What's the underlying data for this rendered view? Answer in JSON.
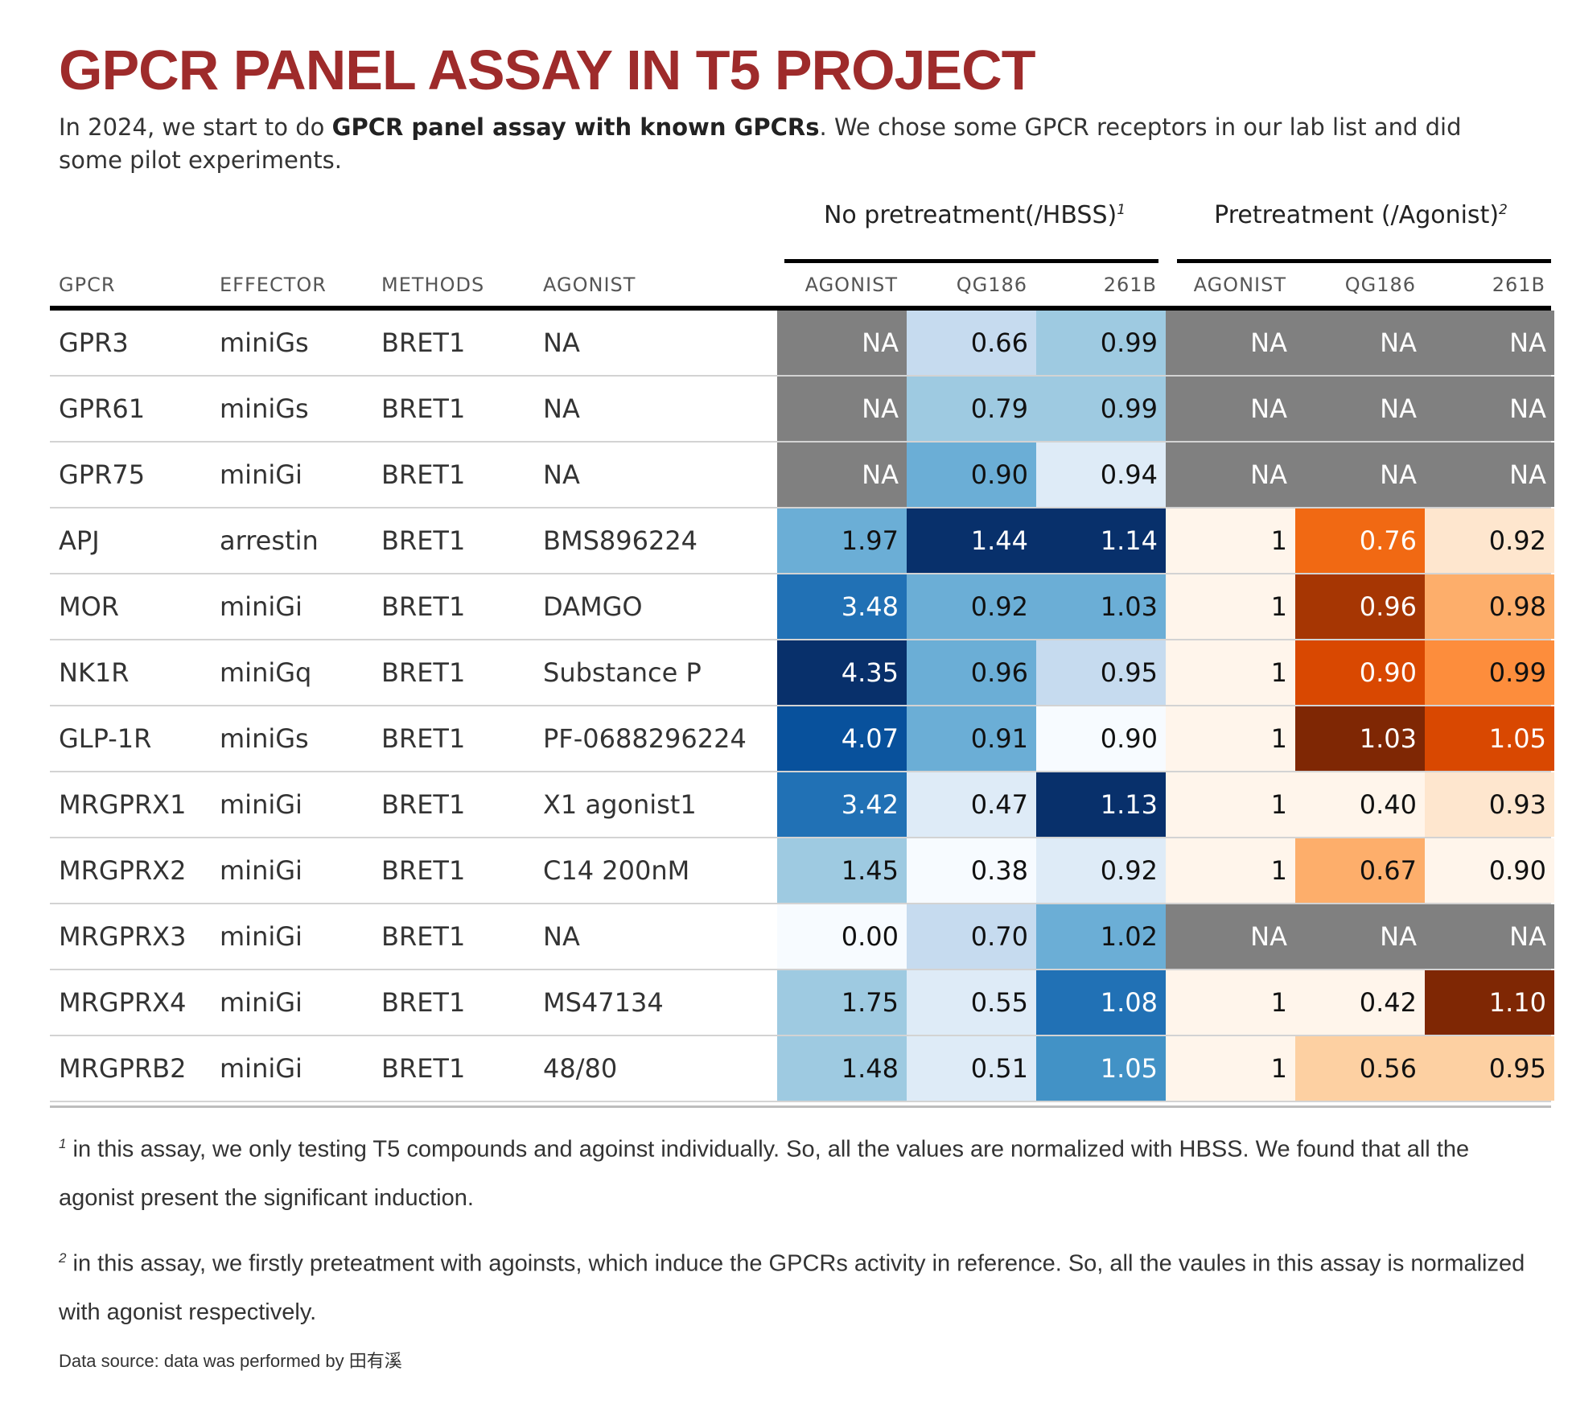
{
  "title": "GPCR PANEL ASSAY IN T5 PROJECT",
  "subtitle": {
    "pre": "In 2024, we start to do ",
    "bold": "GPCR panel assay with known GPCRs",
    "post": ". We chose some GPCR receptors in our lab list and did some pilot experiments."
  },
  "spanners": [
    {
      "label": "No pretreatment(/HBSS)",
      "note": "1"
    },
    {
      "label": "Pretreatment (/Agonist)",
      "note": "2"
    }
  ],
  "columns": [
    "GPCR",
    "EFFECTOR",
    "METHODS",
    "AGONIST",
    "AGONIST",
    "QG186",
    "261B",
    "AGONIST",
    "QG186",
    "261B"
  ],
  "colors": {
    "title": "#9e2b2b",
    "na": "#808080",
    "blues": [
      "#f7fbff",
      "#deebf7",
      "#c6dbef",
      "#9ecae1",
      "#6baed6",
      "#4292c6",
      "#2171b5",
      "#08519c",
      "#08306b"
    ],
    "oranges": [
      "#fff5eb",
      "#fee6ce",
      "#fdd0a2",
      "#fdae6b",
      "#fd8d3c",
      "#f16913",
      "#d94801",
      "#a63603",
      "#7f2704"
    ]
  },
  "chart_data": {
    "type": "table",
    "title": "GPCR PANEL ASSAY IN T5 PROJECT",
    "groups": [
      "No pretreatment(/HBSS)",
      "Pretreatment (/Agonist)"
    ],
    "rows": [
      {
        "gpcr": "GPR3",
        "effector": "miniGs",
        "method": "BRET1",
        "agonist": "NA",
        "nopre": [
          "NA",
          "0.66",
          "0.99"
        ],
        "pre": [
          "NA",
          "NA",
          "NA"
        ]
      },
      {
        "gpcr": "GPR61",
        "effector": "miniGs",
        "method": "BRET1",
        "agonist": "NA",
        "nopre": [
          "NA",
          "0.79",
          "0.99"
        ],
        "pre": [
          "NA",
          "NA",
          "NA"
        ]
      },
      {
        "gpcr": "GPR75",
        "effector": "miniGi",
        "method": "BRET1",
        "agonist": "NA",
        "nopre": [
          "NA",
          "0.90",
          "0.94"
        ],
        "pre": [
          "NA",
          "NA",
          "NA"
        ]
      },
      {
        "gpcr": "APJ",
        "effector": "arrestin",
        "method": "BRET1",
        "agonist": "BMS896224",
        "nopre": [
          "1.97",
          "1.44",
          "1.14"
        ],
        "pre": [
          "1",
          "0.76",
          "0.92"
        ]
      },
      {
        "gpcr": "MOR",
        "effector": "miniGi",
        "method": "BRET1",
        "agonist": "DAMGO",
        "nopre": [
          "3.48",
          "0.92",
          "1.03"
        ],
        "pre": [
          "1",
          "0.96",
          "0.98"
        ]
      },
      {
        "gpcr": "NK1R",
        "effector": "miniGq",
        "method": "BRET1",
        "agonist": "Substance P",
        "nopre": [
          "4.35",
          "0.96",
          "0.95"
        ],
        "pre": [
          "1",
          "0.90",
          "0.99"
        ]
      },
      {
        "gpcr": "GLP-1R",
        "effector": "miniGs",
        "method": "BRET1",
        "agonist": "PF-0688296224",
        "nopre": [
          "4.07",
          "0.91",
          "0.90"
        ],
        "pre": [
          "1",
          "1.03",
          "1.05"
        ]
      },
      {
        "gpcr": "MRGPRX1",
        "effector": "miniGi",
        "method": "BRET1",
        "agonist": "X1 agonist1",
        "nopre": [
          "3.42",
          "0.47",
          "1.13"
        ],
        "pre": [
          "1",
          "0.40",
          "0.93"
        ]
      },
      {
        "gpcr": "MRGPRX2",
        "effector": "miniGi",
        "method": "BRET1",
        "agonist": "C14 200nM",
        "nopre": [
          "1.45",
          "0.38",
          "0.92"
        ],
        "pre": [
          "1",
          "0.67",
          "0.90"
        ]
      },
      {
        "gpcr": "MRGPRX3",
        "effector": "miniGi",
        "method": "BRET1",
        "agonist": "NA",
        "nopre": [
          "0.00",
          "0.70",
          "1.02"
        ],
        "pre": [
          "NA",
          "NA",
          "NA"
        ]
      },
      {
        "gpcr": "MRGPRX4",
        "effector": "miniGi",
        "method": "BRET1",
        "agonist": "MS47134",
        "nopre": [
          "1.75",
          "0.55",
          "1.08"
        ],
        "pre": [
          "1",
          "0.42",
          "1.10"
        ]
      },
      {
        "gpcr": "MRGPRB2",
        "effector": "miniGi",
        "method": "BRET1",
        "agonist": "48/80",
        "nopre": [
          "1.48",
          "0.51",
          "1.05"
        ],
        "pre": [
          "1",
          "0.56",
          "0.95"
        ]
      }
    ]
  },
  "footnotes": [
    {
      "mark": "1",
      "text": " in this assay, we only testing T5 compounds and agoinst individually. So, all the values are normalized with HBSS. We found that all the agonist present the significant induction."
    },
    {
      "mark": "2",
      "text": " in this assay, we firstly preteatment with agoinsts, which induce the GPCRs activity in reference. So, all the vaules in this assay is normalized with agonist respectively."
    }
  ],
  "source": "Data source: data was performed by 田有溪"
}
